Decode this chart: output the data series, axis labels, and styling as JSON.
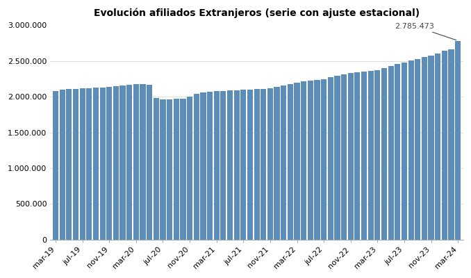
{
  "title": "Evolución afiliados Extranjeros (serie con ajuste estacional)",
  "bar_color": "#5b8db8",
  "background_color": "#ffffff",
  "annotation_value": "2.785.473",
  "ylim": [
    0,
    3000000
  ],
  "yticks": [
    0,
    500000,
    1000000,
    1500000,
    2000000,
    2500000,
    3000000
  ],
  "key_months": {
    "0": 2075000,
    "1": 2095000,
    "2": 2105000,
    "3": 2110000,
    "4": 2115000,
    "5": 2120000,
    "6": 2125000,
    "7": 2130000,
    "8": 2135000,
    "9": 2145000,
    "10": 2155000,
    "11": 2165000,
    "12": 2175000,
    "13": 2175000,
    "14": 2165000,
    "15": 1985000,
    "16": 1960000,
    "17": 1960000,
    "18": 1970000,
    "19": 1975000,
    "20": 2005000,
    "21": 2040000,
    "22": 2060000,
    "23": 2070000,
    "24": 2075000,
    "25": 2080000,
    "26": 2085000,
    "27": 2090000,
    "28": 2095000,
    "29": 2100000,
    "30": 2105000,
    "31": 2110000,
    "32": 2115000,
    "33": 2135000,
    "34": 2155000,
    "35": 2175000,
    "36": 2200000,
    "37": 2215000,
    "38": 2225000,
    "39": 2235000,
    "40": 2250000,
    "41": 2270000,
    "42": 2295000,
    "43": 2315000,
    "44": 2330000,
    "45": 2340000,
    "46": 2350000,
    "47": 2360000,
    "48": 2375000,
    "49": 2400000,
    "50": 2430000,
    "51": 2455000,
    "52": 2480000,
    "53": 2505000,
    "54": 2525000,
    "55": 2555000,
    "56": 2580000,
    "57": 2610000,
    "58": 2640000,
    "59": 2665000,
    "60": 2785473
  }
}
